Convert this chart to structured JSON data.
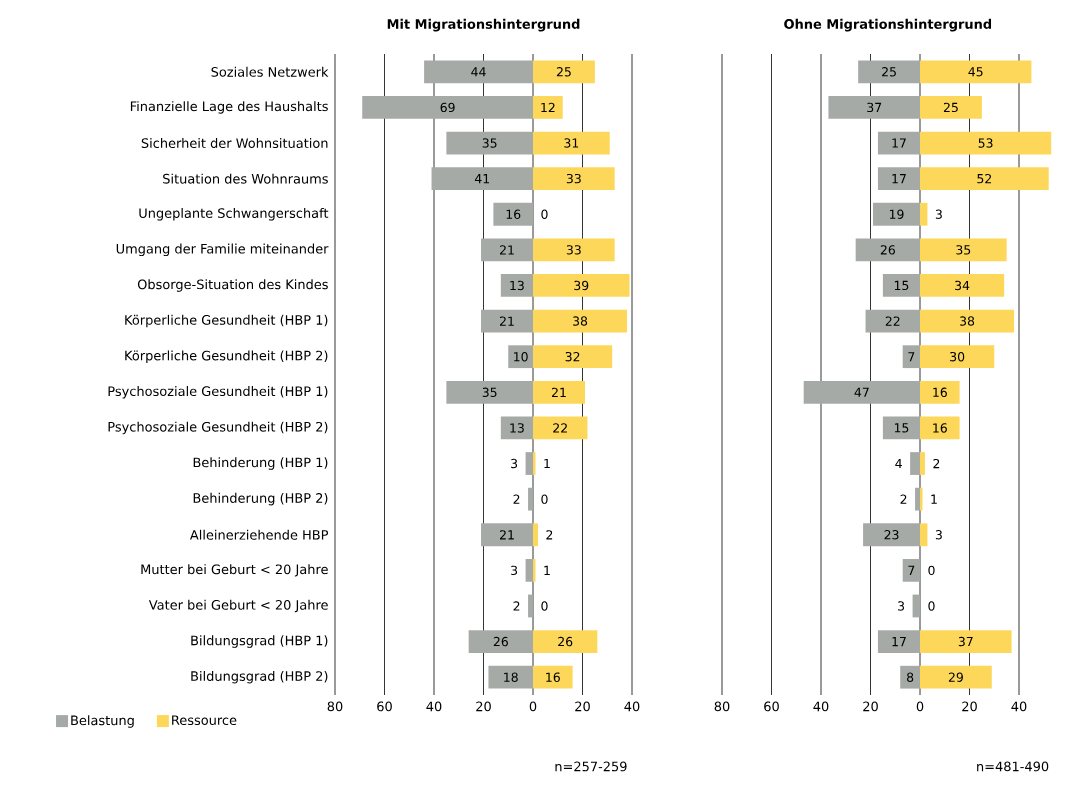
{
  "chart_data": [
    {
      "type": "bar",
      "orientation": "horizontal",
      "title": "Mit Migrationshintergrund",
      "categories": [
        "Soziales Netzwerk",
        "Finanzielle Lage des Haushalts",
        "Sicherheit der Wohnsituation",
        "Situation des Wohnraums",
        "Ungeplante Schwangerschaft",
        "Umgang der Familie miteinander",
        "Obsorge-Situation des Kindes",
        "Körperliche Gesundheit (HBP 1)",
        "Körperliche Gesundheit (HBP 2)",
        "Psychosoziale Gesundheit (HBP 1)",
        "Psychosoziale Gesundheit (HBP 2)",
        "Behinderung (HBP 1)",
        "Behinderung (HBP 2)",
        "Alleinerziehende HBP",
        "Mutter bei Geburt < 20 Jahre",
        "Vater bei Geburt < 20 Jahre",
        "Bildungsgrad (HBP 1)",
        "Bildungsgrad (HBP 2)"
      ],
      "series": [
        {
          "name": "Belastung",
          "color": "#a6aaa7",
          "values": [
            44,
            69,
            35,
            41,
            16,
            21,
            13,
            21,
            10,
            35,
            13,
            3,
            2,
            21,
            3,
            2,
            26,
            18
          ],
          "base": [
            -44,
            -69,
            -35,
            -41,
            -16,
            -21,
            -13,
            -21,
            -10,
            -35,
            -13,
            -3,
            -2,
            -21,
            -3,
            -2,
            -26,
            -18
          ]
        },
        {
          "name": "Ressource",
          "color": "#fdd75a",
          "values": [
            25,
            12,
            31,
            33,
            0,
            33,
            39,
            38,
            32,
            21,
            22,
            1,
            0,
            2,
            1,
            0,
            26,
            16
          ]
        }
      ],
      "xlim": [
        -80,
        40
      ],
      "xticks": [
        {
          "value": -80,
          "label": "80"
        },
        {
          "value": -60,
          "label": "60"
        },
        {
          "value": -40,
          "label": "40"
        },
        {
          "value": -20,
          "label": "20"
        },
        0,
        20,
        40
      ],
      "grid": "x",
      "legend": "bottom left",
      "data_labels": true,
      "annotations": [
        "n=257-259"
      ]
    },
    {
      "type": "bar",
      "orientation": "horizontal",
      "title": "Ohne Migrationshintergrund",
      "categories": [
        null,
        null,
        null,
        null,
        null,
        null,
        null,
        null,
        null,
        null,
        null,
        null,
        null,
        null,
        null,
        null,
        null,
        null
      ],
      "series": [
        {
          "color": "#a6aaa7",
          "values": [
            25,
            37,
            17,
            17,
            19,
            26,
            15,
            22,
            7,
            47,
            15,
            4,
            2,
            23,
            7,
            3,
            17,
            8
          ],
          "base": [
            -25,
            -37,
            -17,
            -17,
            -19,
            -26,
            -15,
            -22,
            -7,
            -47,
            -15,
            -4,
            -2,
            -23,
            -7,
            -3,
            -17,
            -8
          ]
        },
        {
          "color": "#fdd75a",
          "values": [
            45,
            25,
            53,
            52,
            3,
            35,
            34,
            38,
            30,
            16,
            16,
            2,
            1,
            3,
            0,
            0,
            37,
            29
          ]
        }
      ],
      "xlim": [
        -80,
        54
      ],
      "xticks": [
        {
          "value": -80,
          "label": "80"
        },
        {
          "value": -60,
          "label": "60"
        },
        {
          "value": -40,
          "label": "40"
        },
        {
          "value": -20,
          "label": "20"
        },
        0,
        20,
        40
      ],
      "grid": "x",
      "data_labels": true,
      "annotations": [
        "n=481-490"
      ]
    }
  ]
}
